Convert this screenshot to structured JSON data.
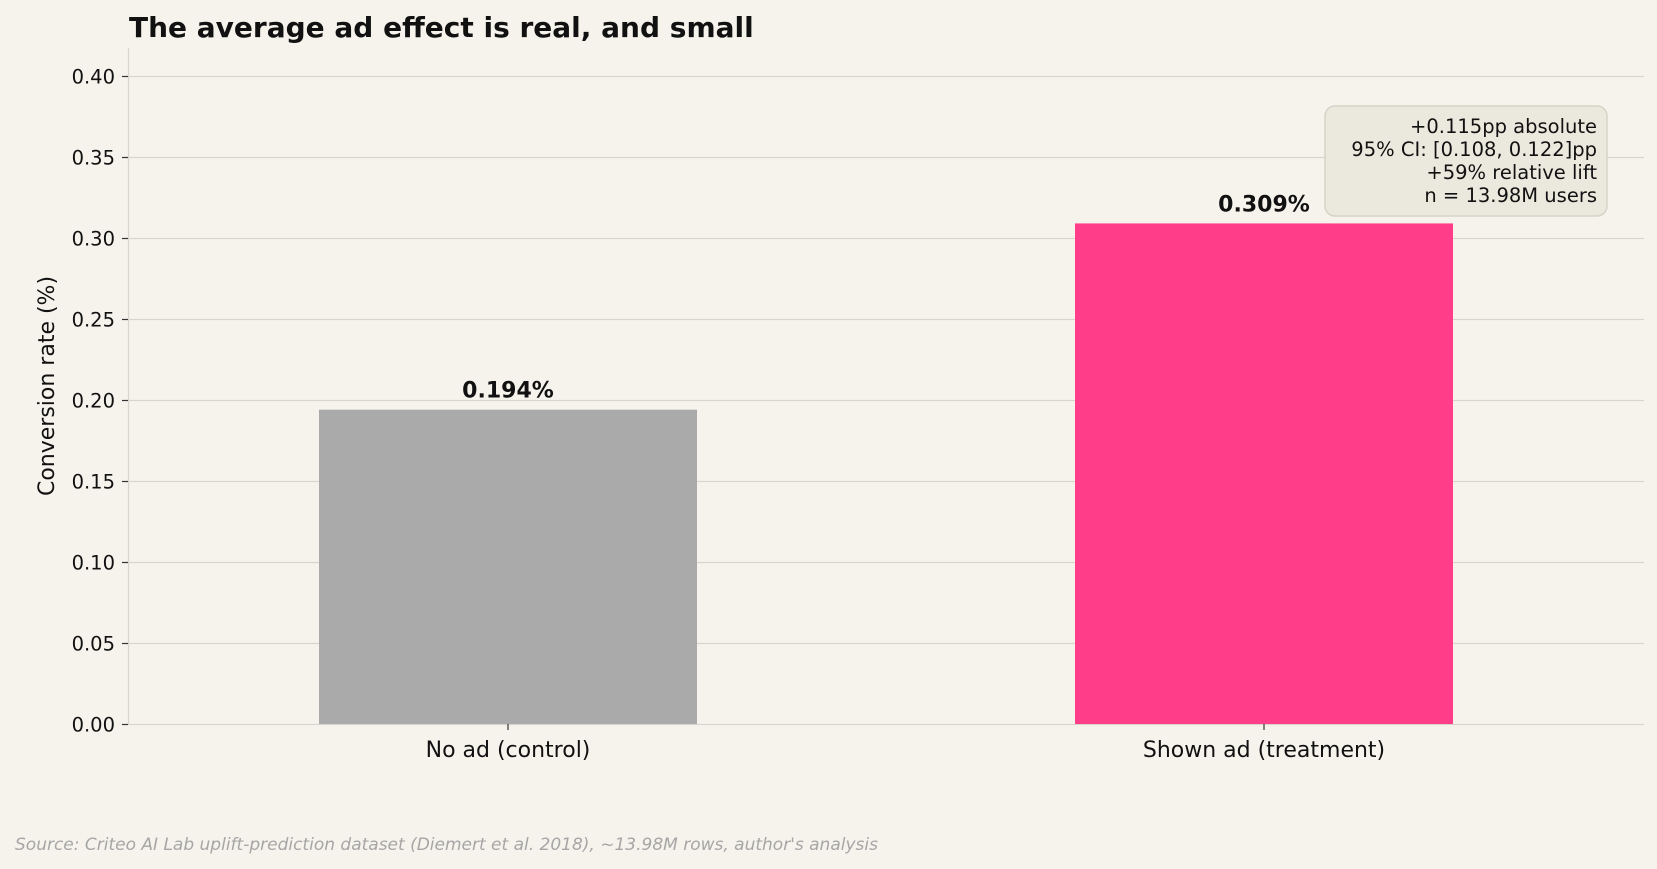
{
  "chart_data": {
    "type": "bar",
    "title": "The average ad effect is real, and small",
    "xlabel": "",
    "ylabel": "Conversion rate (%)",
    "ylim": [
      0,
      0.42
    ],
    "yticks": [
      "0.00",
      "0.05",
      "0.10",
      "0.15",
      "0.20",
      "0.25",
      "0.30",
      "0.35",
      "0.40"
    ],
    "categories": [
      "No ad (control)",
      "Shown ad (treatment)"
    ],
    "values": [
      0.194,
      0.309
    ],
    "data_labels": [
      "0.194%",
      "0.309%"
    ],
    "colors": [
      "#aaaaaa",
      "#ff3d88"
    ],
    "grid": true,
    "annotation": {
      "position": "top-right",
      "lines": [
        "+0.115pp absolute",
        "95% CI: [0.108, 0.122]pp",
        "+59% relative lift",
        "n = 13.98M users"
      ]
    }
  },
  "source": "Source: Criteo AI Lab uplift-prediction dataset (Diemert et al. 2018), ~13.98M rows, author's analysis",
  "colors": {
    "background": "#f6f3ec",
    "grid": "#d8d5cd",
    "annotation_fill": "#ebe8dd",
    "annotation_border": "#d6d3c8",
    "source_text": "#a6a6a6"
  }
}
